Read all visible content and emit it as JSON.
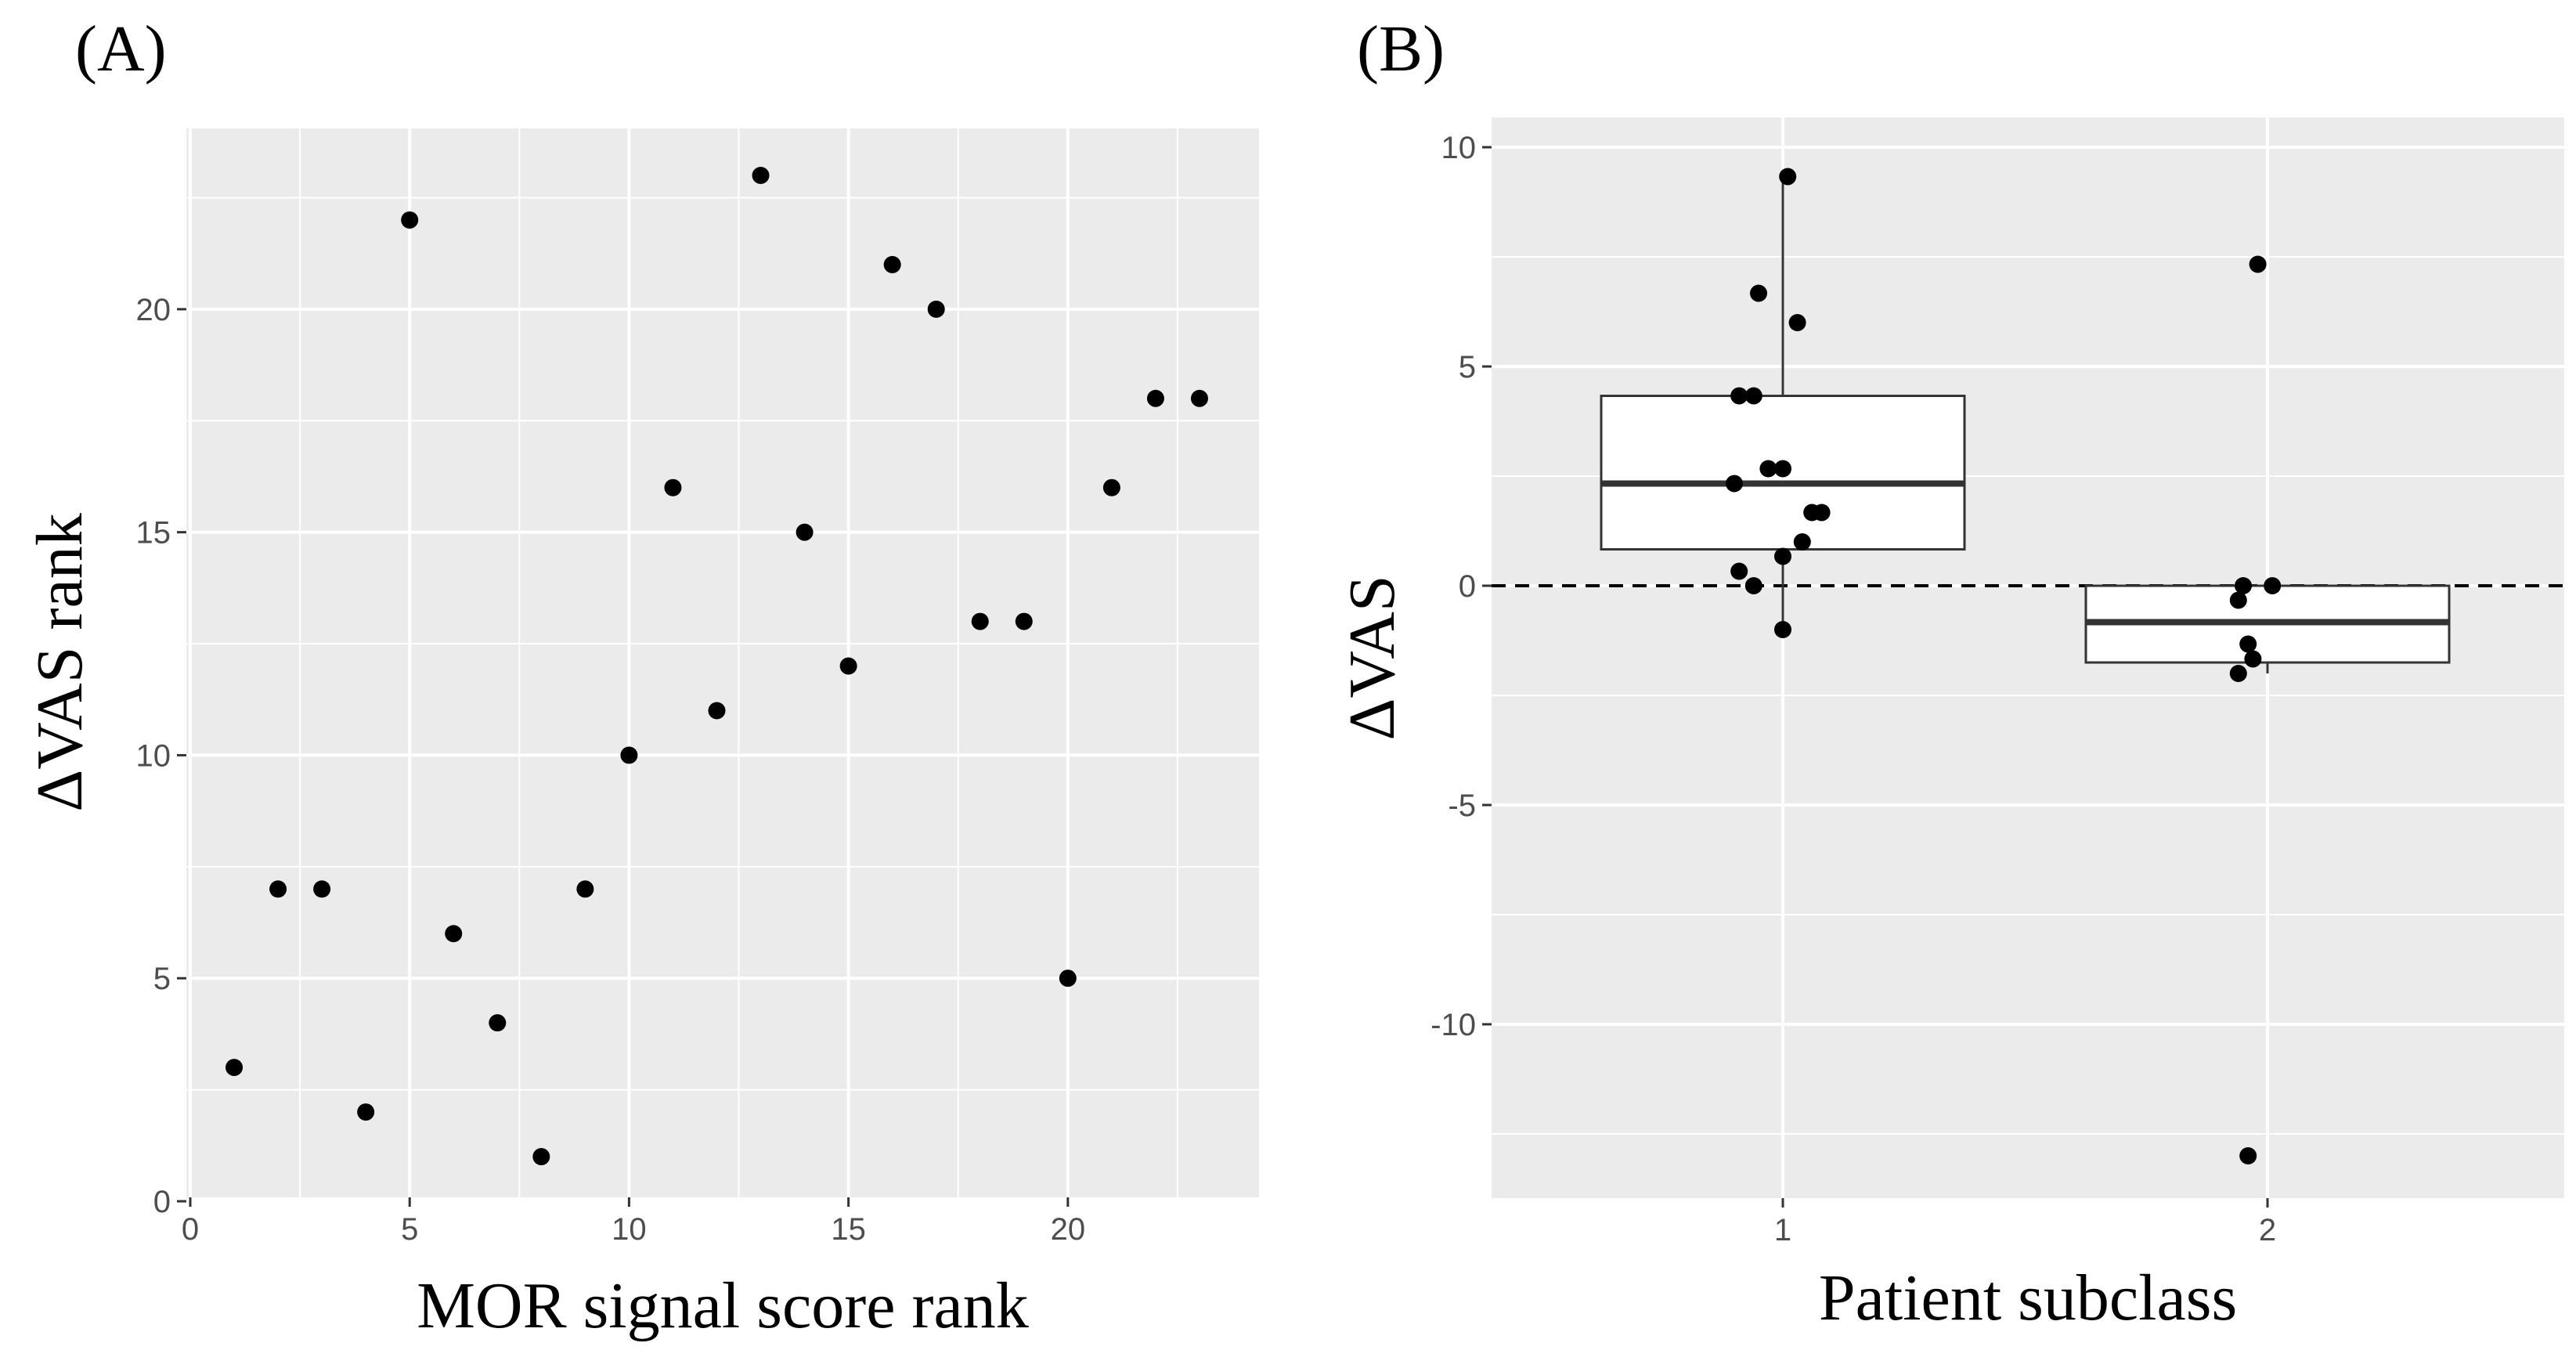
{
  "colors": {
    "panel_background": "#ebebeb",
    "grid_line": "#ffffff",
    "point": "#000000",
    "box_fill": "#ffffff",
    "box_stroke": "#333333",
    "tick_text": "#4d4d4d",
    "axis_title": "#000000"
  },
  "chart_data": [
    {
      "type": "scatter",
      "panel_label": "(A)",
      "xlabel": "MOR signal score rank",
      "ylabel": "ΔVAS rank",
      "xlim": [
        0,
        24
      ],
      "ylim": [
        0,
        24
      ],
      "x_ticks": [
        0,
        5,
        10,
        15,
        20
      ],
      "x_tick_labels": [
        "0",
        "5",
        "10",
        "15",
        "20"
      ],
      "y_ticks": [
        0,
        5,
        10,
        15,
        20
      ],
      "y_tick_labels": [
        "0",
        "5",
        "10",
        "15",
        "20"
      ],
      "grid": true,
      "points": [
        {
          "x": 1,
          "y": 3
        },
        {
          "x": 2,
          "y": 7
        },
        {
          "x": 3,
          "y": 7
        },
        {
          "x": 4,
          "y": 2
        },
        {
          "x": 5,
          "y": 22
        },
        {
          "x": 6,
          "y": 6
        },
        {
          "x": 7,
          "y": 4
        },
        {
          "x": 8,
          "y": 1
        },
        {
          "x": 9,
          "y": 7
        },
        {
          "x": 10,
          "y": 10
        },
        {
          "x": 11,
          "y": 16
        },
        {
          "x": 12,
          "y": 11
        },
        {
          "x": 13,
          "y": 23
        },
        {
          "x": 14,
          "y": 15
        },
        {
          "x": 15,
          "y": 12
        },
        {
          "x": 16,
          "y": 21
        },
        {
          "x": 17,
          "y": 20
        },
        {
          "x": 18,
          "y": 13
        },
        {
          "x": 19,
          "y": 13
        },
        {
          "x": 20,
          "y": 5
        },
        {
          "x": 21,
          "y": 16
        },
        {
          "x": 22,
          "y": 18
        },
        {
          "x": 23,
          "y": 18
        }
      ]
    },
    {
      "type": "box",
      "panel_label": "(B)",
      "xlabel": "Patient subclass",
      "ylabel": "ΔVAS",
      "categories": [
        "1",
        "2"
      ],
      "ylim": [
        -14,
        10.5
      ],
      "y_ticks": [
        10,
        5,
        0,
        -5,
        -10
      ],
      "y_tick_labels": [
        "10",
        "5",
        "0",
        "-5",
        "-10"
      ],
      "reference_line": 0,
      "grid": true,
      "boxes": [
        {
          "category": "1",
          "whisker_low": -1.0,
          "q1": 0.83,
          "median": 2.33,
          "q3": 4.33,
          "whisker_high": 9.33
        },
        {
          "category": "2",
          "whisker_low": -2.0,
          "q1": -1.75,
          "median": -0.83,
          "q3": 0.0,
          "whisker_high": 0.0
        }
      ],
      "points": [
        {
          "category": "1",
          "jitter": -0.09,
          "y": 4.33
        },
        {
          "category": "1",
          "jitter": -0.06,
          "y": 4.33
        },
        {
          "category": "1",
          "jitter": -0.03,
          "y": 2.67
        },
        {
          "category": "1",
          "jitter": 0.0,
          "y": 2.67
        },
        {
          "category": "1",
          "jitter": -0.1,
          "y": 2.33
        },
        {
          "category": "1",
          "jitter": 0.06,
          "y": 1.67
        },
        {
          "category": "1",
          "jitter": 0.08,
          "y": 1.67
        },
        {
          "category": "1",
          "jitter": 0.04,
          "y": 1.0
        },
        {
          "category": "1",
          "jitter": 0.0,
          "y": 0.67
        },
        {
          "category": "1",
          "jitter": -0.09,
          "y": 0.33
        },
        {
          "category": "1",
          "jitter": -0.06,
          "y": 0.0
        },
        {
          "category": "1",
          "jitter": 0.0,
          "y": -1.0
        },
        {
          "category": "1",
          "jitter": -0.05,
          "y": 6.67
        },
        {
          "category": "1",
          "jitter": 0.03,
          "y": 6.0
        },
        {
          "category": "1",
          "jitter": 0.01,
          "y": 9.33
        },
        {
          "category": "2",
          "jitter": -0.05,
          "y": 0.0
        },
        {
          "category": "2",
          "jitter": 0.01,
          "y": 0.0
        },
        {
          "category": "2",
          "jitter": -0.06,
          "y": -0.33
        },
        {
          "category": "2",
          "jitter": -0.04,
          "y": -1.33
        },
        {
          "category": "2",
          "jitter": -0.03,
          "y": -1.67
        },
        {
          "category": "2",
          "jitter": -0.06,
          "y": -2.0
        },
        {
          "category": "2",
          "jitter": -0.02,
          "y": 7.33
        },
        {
          "category": "2",
          "jitter": -0.04,
          "y": -13.0
        }
      ]
    }
  ]
}
